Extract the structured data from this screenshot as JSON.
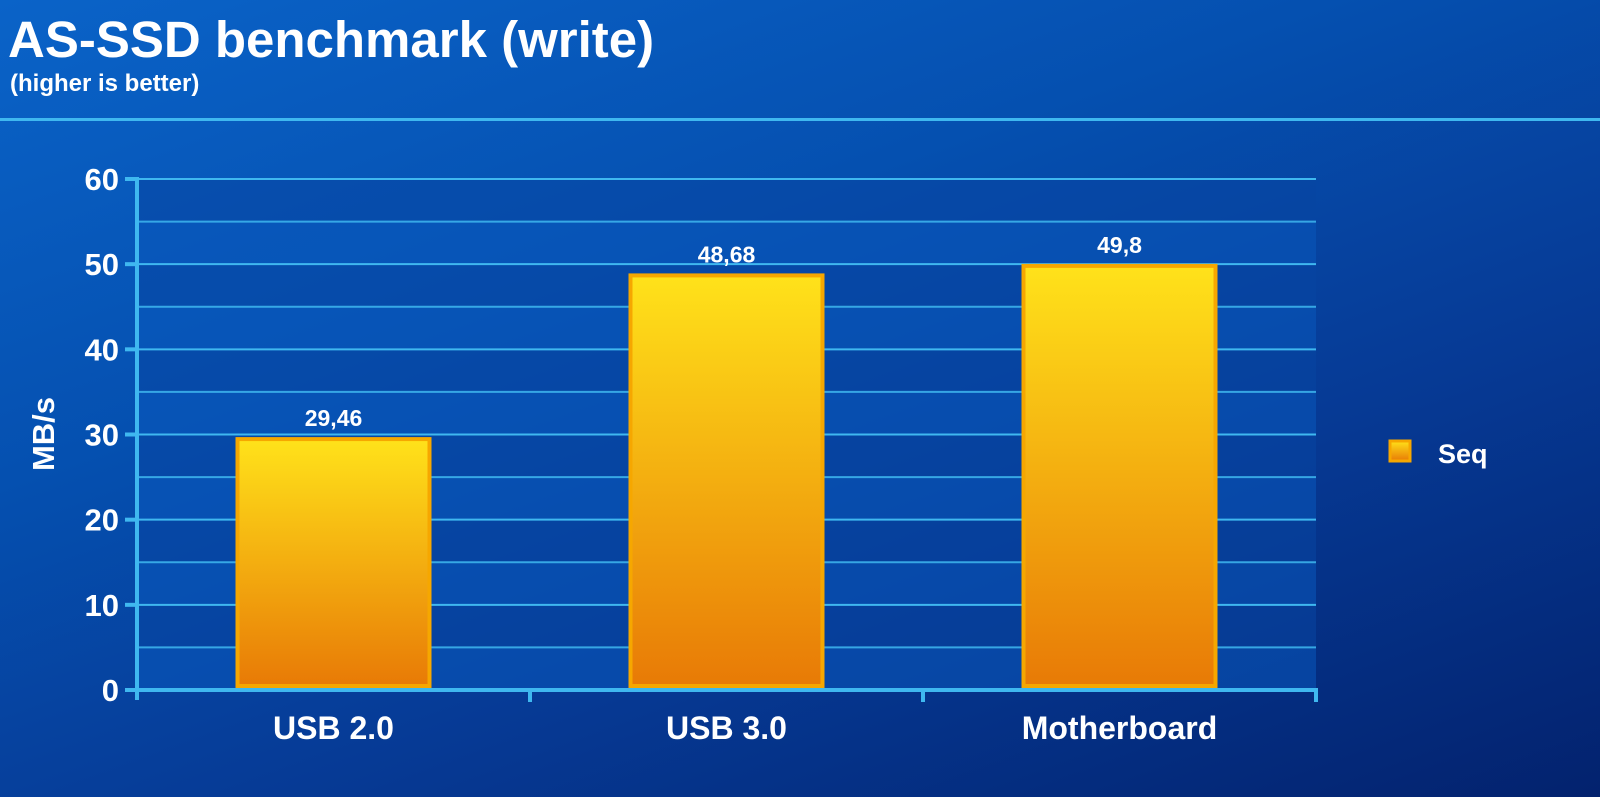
{
  "chart_data": {
    "type": "bar",
    "title": "AS-SSD benchmark (write)",
    "subtitle": "(higher is better)",
    "ylabel": "MB/s",
    "xlabel": "",
    "ylim": [
      0,
      60
    ],
    "yticks": [
      0,
      10,
      20,
      30,
      40,
      50,
      60
    ],
    "categories": [
      "USB 2.0",
      "USB 3.0",
      "Motherboard"
    ],
    "series": [
      {
        "name": "Seq",
        "values": [
          29.46,
          48.68,
          49.8
        ],
        "labels": [
          "29,46",
          "48,68",
          "49,8"
        ]
      }
    ],
    "grid": true,
    "legend": "right",
    "colors": {
      "bar_top": "#ffe21a",
      "bar_bottom": "#e87a06",
      "bar_border": "#f6a700",
      "axis": "#3fb8f0",
      "grid": "#3fb8f0",
      "band_dark": "#0746a3",
      "band_light": "#0a58bb"
    }
  }
}
